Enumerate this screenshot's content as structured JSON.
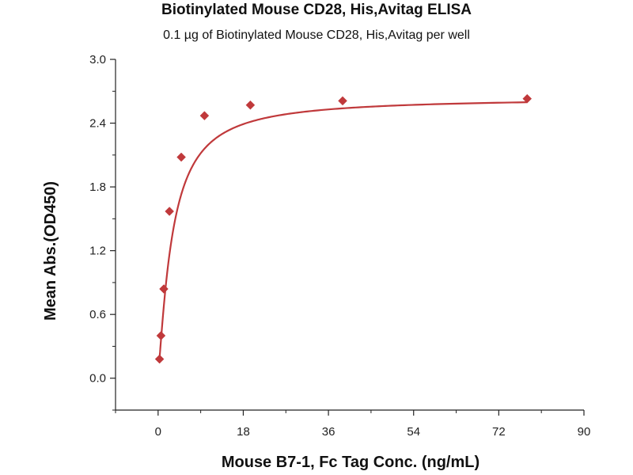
{
  "chart_data": {
    "type": "scatter",
    "title": "Biotinylated Mouse CD28, His,Avitag ELISA",
    "subtitle": "0.1 µg of Biotinylated Mouse CD28, His,Avitag per well",
    "xlabel": "Mouse B7-1, Fc Tag Conc. (ng/mL)",
    "ylabel": "Mean Abs.(OD450)",
    "xlim": [
      -9,
      90
    ],
    "ylim": [
      -0.3,
      3.0
    ],
    "xticks": [
      0,
      18,
      36,
      54,
      72,
      90
    ],
    "yticks": [
      0.0,
      0.6,
      1.2,
      1.8,
      2.4,
      3.0
    ],
    "xtick_labels": [
      "0",
      "18",
      "36",
      "54",
      "72",
      "90"
    ],
    "ytick_labels": [
      "0.0",
      "0.6",
      "1.2",
      "1.8",
      "2.4",
      "3.0"
    ],
    "grid": false,
    "series": [
      {
        "x": [
          0.3,
          0.6,
          1.2,
          2.4,
          4.9,
          9.8,
          19.5,
          39,
          78
        ],
        "y": [
          0.18,
          0.4,
          0.84,
          1.57,
          2.08,
          2.47,
          2.57,
          2.61,
          2.63
        ],
        "marker": "diamond",
        "color": "#c0393b",
        "fit_curve": true
      }
    ]
  }
}
